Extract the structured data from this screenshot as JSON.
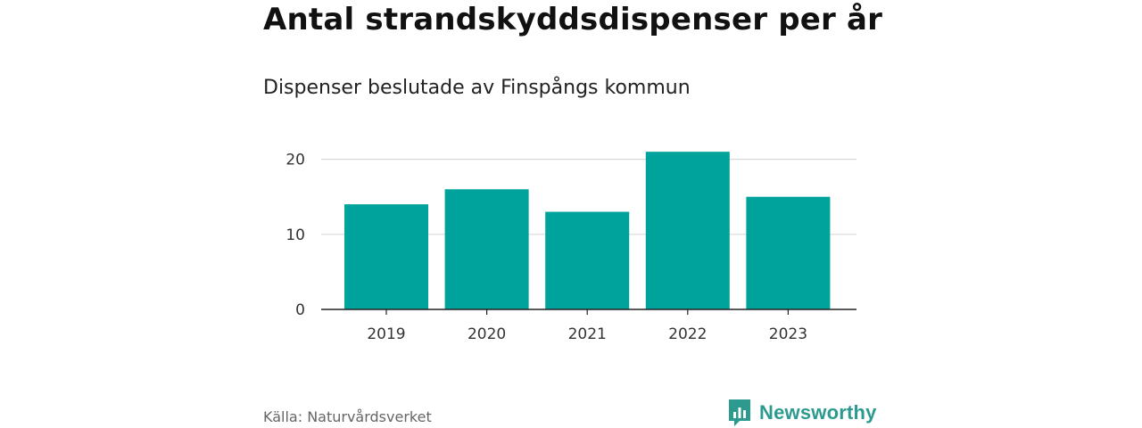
{
  "header": {
    "title": "Antal strandskyddsdispenser per år",
    "subtitle": "Dispenser beslutade av Finspångs kommun"
  },
  "footer": {
    "source": "Källa: Naturvårdsverket",
    "brand": "Newsworthy",
    "brand_icon": "chart-bubble-icon"
  },
  "colors": {
    "bar": "#00a39b",
    "grid": "#d9d9d9",
    "axis": "#222222",
    "brand": "#2d9a8f"
  },
  "chart_data": {
    "type": "bar",
    "title": "Antal strandskyddsdispenser per år",
    "subtitle": "Dispenser beslutade av Finspångs kommun",
    "categories": [
      "2019",
      "2020",
      "2021",
      "2022",
      "2023"
    ],
    "values": [
      14,
      16,
      13,
      21,
      15
    ],
    "xlabel": "",
    "ylabel": "",
    "ylim": [
      0,
      22
    ],
    "yticks": [
      0,
      10,
      20
    ],
    "grid": true
  }
}
